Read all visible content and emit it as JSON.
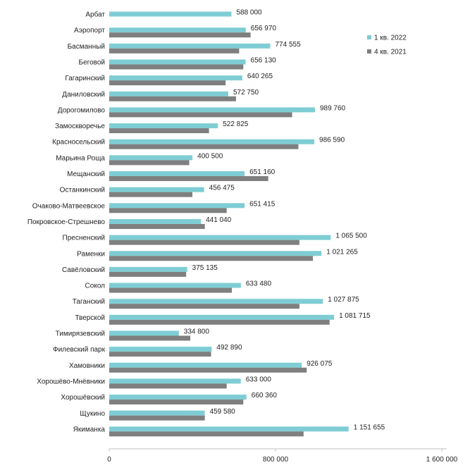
{
  "chart_data": {
    "type": "bar",
    "orientation": "horizontal",
    "title": "",
    "xlabel": "",
    "ylabel": "",
    "xlim": [
      0,
      1600000
    ],
    "ticks": [
      {
        "value": 0,
        "label": "0"
      },
      {
        "value": 800000,
        "label": "800 000"
      },
      {
        "value": 1600000,
        "label": "1 600 000"
      }
    ],
    "legend_position": "right",
    "categories": [
      "Арбат",
      "Аэропорт",
      "Басманный",
      "Беговой",
      "Гагаринский",
      "Даниловский",
      "Дорогомилово",
      "Замоскворечье",
      "Красносельский",
      "Марьина Роща",
      "Мещанский",
      "Останкинский",
      "Очаково-Матвеевское",
      "Покровское-Стрешнево",
      "Пресненский",
      "Раменки",
      "Савёловский",
      "Сокол",
      "Таганский",
      "Тверской",
      "Тимирязевский",
      "Филевский парк",
      "Хамовники",
      "Хорошёво-Мнёвники",
      "Хорошёвский",
      "Щукино",
      "Якиманка"
    ],
    "series": [
      {
        "name": "1 кв. 2022",
        "color": "#7fcdd4",
        "values": [
          588000,
          656970,
          774555,
          656130,
          640265,
          572750,
          989760,
          522825,
          986590,
          400500,
          651160,
          456475,
          651415,
          441040,
          1065500,
          1021265,
          375135,
          633480,
          1027875,
          1081715,
          334800,
          492890,
          926075,
          633000,
          660360,
          459580,
          1151655
        ],
        "labels": [
          "588 000",
          "656 970",
          "774 555",
          "656 130",
          "640 265",
          "572 750",
          "989 760",
          "522 825",
          "986 590",
          "400 500",
          "651 160",
          "456 475",
          "651 415",
          "441 040",
          "1 065 500",
          "1 021 265",
          "375 135",
          "633 480",
          "1 027 875",
          "1 081 715",
          "334 800",
          "492 890",
          "926 075",
          "633 000",
          "660 360",
          "459 580",
          "1 151 655"
        ]
      },
      {
        "name": "4 кв. 2021",
        "color": "#7f7f7f",
        "values": [
          null,
          680000,
          625000,
          645000,
          560000,
          610000,
          880000,
          480000,
          910000,
          385000,
          765000,
          400000,
          565000,
          460000,
          915000,
          980000,
          370000,
          590000,
          915000,
          1060000,
          390000,
          490000,
          950000,
          565000,
          645000,
          460000,
          935000
        ]
      }
    ]
  }
}
